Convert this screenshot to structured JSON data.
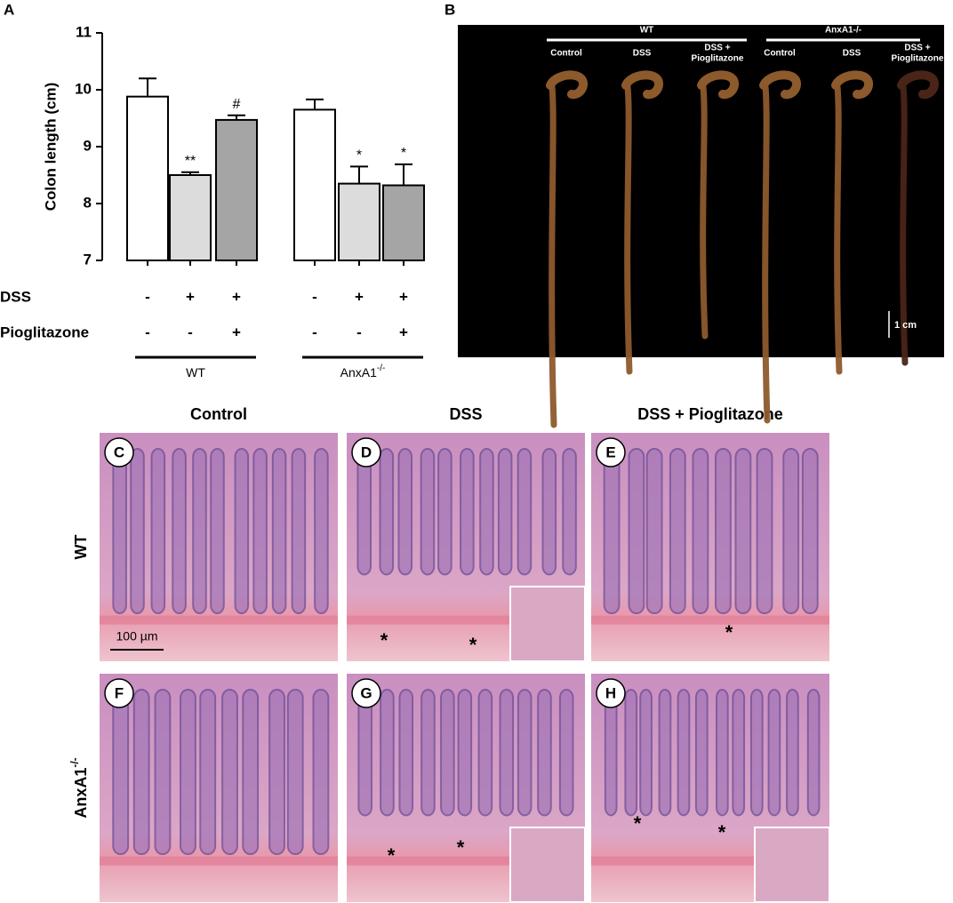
{
  "figure": {
    "panel_labels": [
      "A",
      "B"
    ]
  },
  "chart_data": {
    "type": "bar",
    "ylabel": "Colon length (cm)",
    "values": [
      9.88,
      8.5,
      9.47,
      9.65,
      8.35,
      8.32
    ],
    "errors": [
      0.32,
      0.05,
      0.08,
      0.18,
      0.3,
      0.37
    ],
    "colors": [
      "#ffffff",
      "#dcdcdc",
      "#a5a5a5",
      "#ffffff",
      "#dcdcdc",
      "#a5a5a5"
    ],
    "annotations": [
      null,
      "**",
      "#",
      null,
      "*",
      "*"
    ],
    "ylim": [
      7,
      11
    ],
    "yticks": [
      7,
      8,
      9,
      10,
      11
    ],
    "conditions": [
      {
        "name": "DSS",
        "signs": [
          "-",
          "+",
          "+",
          "-",
          "+",
          "+"
        ]
      },
      {
        "name": "Pioglitazone",
        "signs": [
          "-",
          "-",
          "+",
          "-",
          "-",
          "+"
        ]
      }
    ],
    "groups": [
      {
        "label": "WT"
      },
      {
        "label": "AnxA1",
        "superscript": "-/-"
      }
    ]
  },
  "photo": {
    "groups": [
      "WT",
      "AnxA1-/-"
    ],
    "lanes": [
      [
        "Control"
      ],
      [
        "DSS"
      ],
      [
        "DSS +",
        "Pioglitazone"
      ],
      [
        "Control"
      ],
      [
        "DSS"
      ],
      [
        "DSS +",
        "Pioglitazone"
      ]
    ],
    "scale_bar": "1 cm"
  },
  "histology": {
    "columns": [
      "Control",
      "DSS",
      "DSS + Pioglitazone"
    ],
    "rows": [
      {
        "label": "WT"
      },
      {
        "label": "AnxA1",
        "superscript": "-/-"
      }
    ],
    "panels": [
      "C",
      "D",
      "E",
      "F",
      "G",
      "H"
    ],
    "scale_bar": "100 µm",
    "asterisk": "*"
  }
}
